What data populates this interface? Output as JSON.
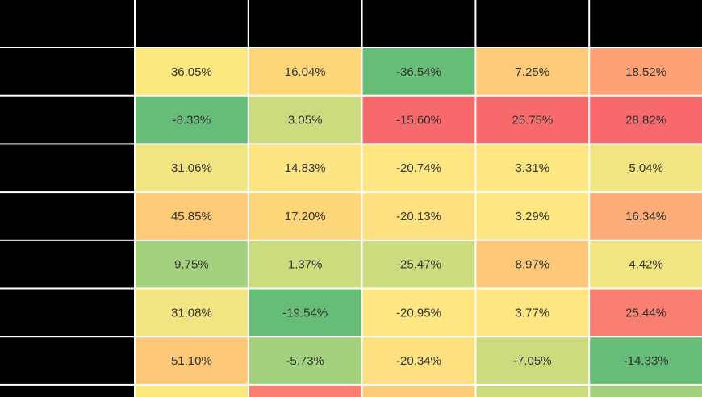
{
  "chart_data": {
    "type": "heatmap",
    "columns": [
      "",
      "",
      "",
      "",
      ""
    ],
    "rows": [
      {
        "label": "",
        "values": [
          "36.05%",
          "16.04%",
          "-36.54%",
          "7.25%",
          "18.52%"
        ],
        "colors": [
          "#fde87f",
          "#fed67a",
          "#66bd77",
          "#fdca77",
          "#fca274"
        ]
      },
      {
        "label": "",
        "values": [
          "-8.33%",
          "3.05%",
          "-15.60%",
          "25.75%",
          "28.82%"
        ],
        "colors": [
          "#66bd77",
          "#cbdc7e",
          "#f8696b",
          "#f8696b",
          "#f8696b"
        ]
      },
      {
        "label": "",
        "values": [
          "31.06%",
          "14.83%",
          "-20.74%",
          "3.31%",
          "5.04%"
        ],
        "colors": [
          "#f1e482",
          "#fee383",
          "#fee783",
          "#fee783",
          "#f1e482"
        ]
      },
      {
        "label": "",
        "values": [
          "45.85%",
          "17.20%",
          "-20.13%",
          "3.29%",
          "16.34%"
        ],
        "colors": [
          "#fdca77",
          "#fed67a",
          "#fde080",
          "#fee783",
          "#fcac76"
        ]
      },
      {
        "label": "",
        "values": [
          "9.75%",
          "1.37%",
          "-25.47%",
          "8.97%",
          "4.42%"
        ],
        "colors": [
          "#a4d17d",
          "#cbdc7e",
          "#cbdc7e",
          "#fdc778",
          "#f1e482"
        ]
      },
      {
        "label": "",
        "values": [
          "31.08%",
          "-19.54%",
          "-20.95%",
          "3.77%",
          "25.44%"
        ],
        "colors": [
          "#f1e482",
          "#66bd77",
          "#fee783",
          "#fee783",
          "#fa7e71"
        ]
      },
      {
        "label": "",
        "values": [
          "51.10%",
          "-5.73%",
          "-20.34%",
          "-7.05%",
          "-14.33%"
        ],
        "colors": [
          "#fdc778",
          "#a4d17d",
          "#fde080",
          "#cbdc7e",
          "#66bd77"
        ]
      }
    ],
    "partial_row_colors": [
      "#fde87f",
      "#fa7e71",
      "#fdca77",
      "#cbdc7e",
      "#a4d17d"
    ],
    "header_color": "#000000",
    "label_color": "#000000"
  }
}
